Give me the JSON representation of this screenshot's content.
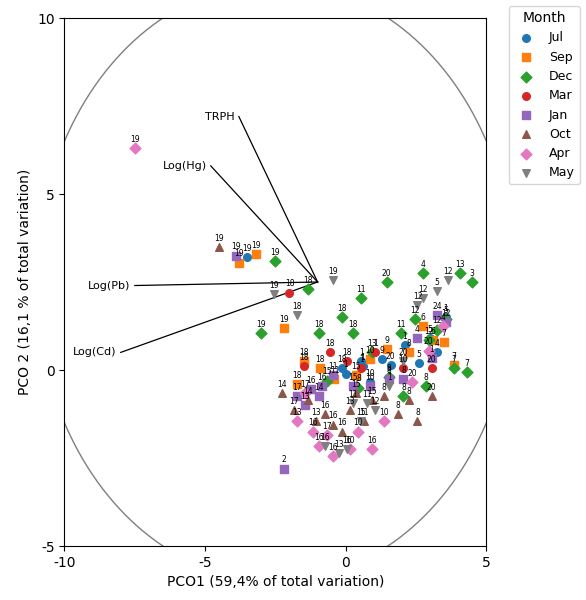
{
  "chart_data": {
    "type": "scatter",
    "x_label": "PCO1 (59,4% of total variation)",
    "y_label": "PCO 2 (16,1 % of total variation)",
    "xlim": [
      -10,
      5
    ],
    "ylim": [
      -5,
      10
    ],
    "xticks": [
      -10,
      -5,
      0,
      5
    ],
    "yticks": [
      -5,
      0,
      5,
      10
    ],
    "grid": false,
    "legend": "upper right",
    "legend_title": "Month",
    "circle": {
      "center": [
        -2.5,
        2.5
      ],
      "radius": 8.5,
      "color": "#7f7f7f"
    },
    "vectors": [
      {
        "label": "TRPH",
        "x1": -1.0,
        "y1": 2.5,
        "x2": -3.8,
        "y2": 7.2,
        "color": "#000000"
      },
      {
        "label": "Log(Hg)",
        "x1": -1.0,
        "y1": 2.5,
        "x2": -4.8,
        "y2": 5.8,
        "color": "#000000"
      },
      {
        "label": "Log(Pb)",
        "x1": -1.0,
        "y1": 2.5,
        "x2": -7.5,
        "y2": 2.4,
        "color": "#000000"
      },
      {
        "label": "Log(Cd)",
        "x1": -1.0,
        "y1": 2.5,
        "x2": -8.0,
        "y2": 0.5,
        "color": "#000000"
      }
    ],
    "series": [
      {
        "name": "Jul",
        "marker": "circle",
        "x": [
          -3.5,
          -0.15,
          0.0,
          0.6,
          1.3,
          1.6,
          0.85,
          0.55,
          2.1,
          2.6,
          3.0,
          3.25,
          3.55
        ],
        "values": [
          3.2,
          0.05,
          -0.1,
          0.1,
          0.3,
          0.15,
          -0.35,
          0.25,
          0.7,
          0.2,
          0.9,
          0.5,
          1.5
        ],
        "labels": [
          "19",
          "18",
          "1",
          "1",
          "9",
          "20",
          "10",
          "1",
          "1",
          "5",
          "5",
          "4",
          "1"
        ]
      },
      {
        "name": "Sep",
        "marker": "square",
        "x": [
          -3.8,
          -3.2,
          -2.2,
          -1.5,
          -1.75,
          -0.9,
          -0.4,
          0.35,
          0.85,
          1.45,
          2.25,
          2.75,
          3.1,
          3.5,
          3.85
        ],
        "values": [
          3.05,
          3.3,
          1.2,
          0.25,
          -0.4,
          0.05,
          -0.25,
          -0.15,
          0.3,
          0.6,
          0.5,
          1.25,
          0.85,
          0.8,
          0.15
        ],
        "labels": [
          "19",
          "19",
          "19",
          "18",
          "18",
          "18",
          "11",
          "15",
          "10",
          "9",
          "8",
          "6",
          "6",
          "7",
          "7"
        ]
      },
      {
        "name": "Dec",
        "marker": "diamond",
        "x": [
          -2.5,
          -1.35,
          -0.95,
          -0.15,
          0.25,
          0.55,
          1.45,
          2.75,
          3.85,
          4.5,
          4.3,
          3.25,
          2.45,
          0.95,
          1.95,
          2.95,
          3.55,
          -0.65,
          0.45,
          1.55,
          2.05,
          2.85,
          -3.0,
          4.05
        ],
        "values": [
          3.1,
          2.3,
          1.05,
          1.5,
          1.05,
          2.05,
          2.5,
          2.75,
          0.05,
          2.5,
          -0.05,
          1.15,
          1.45,
          0.5,
          1.05,
          0.85,
          1.45,
          -0.3,
          -0.5,
          -0.2,
          -0.75,
          -0.45,
          1.05,
          2.75
        ],
        "labels": [
          "19",
          "18",
          "18",
          "18",
          "18",
          "11",
          "20",
          "4",
          "7",
          "3",
          "7",
          "12",
          "12",
          "13",
          "11",
          "12",
          "5",
          "15",
          "8",
          "8",
          "8",
          "8",
          "19",
          "13"
        ]
      },
      {
        "name": "Mar",
        "marker": "circle",
        "x": [
          -2.0,
          -1.5,
          -0.55,
          0.05,
          0.55,
          1.05,
          2.05,
          3.05
        ],
        "values": [
          2.2,
          0.1,
          0.5,
          0.25,
          0.05,
          0.5,
          0.05,
          0.05
        ],
        "labels": [
          "18",
          "18",
          "18",
          "18",
          "1",
          "1",
          "10",
          "20"
        ]
      },
      {
        "name": "Jan",
        "marker": "square",
        "x": [
          -3.9,
          -2.2,
          -1.75,
          -1.45,
          -1.25,
          -0.95,
          -0.85,
          -0.45,
          0.25,
          0.85,
          1.55,
          2.05,
          2.55,
          3.55,
          3.05,
          3.25
        ],
        "values": [
          3.25,
          -2.8,
          -0.75,
          -1.0,
          -0.55,
          -0.75,
          -0.45,
          -0.15,
          -0.45,
          -0.45,
          -0.25,
          -0.25,
          0.9,
          1.35,
          0.35,
          1.55
        ],
        "labels": [
          "19",
          "2",
          "17",
          "13",
          "16",
          "14",
          "16",
          "11",
          "15",
          "10",
          "8",
          "8",
          "4",
          "12",
          "1",
          "24"
        ]
      },
      {
        "name": "Oct",
        "marker": "triangle_up",
        "x": [
          -4.5,
          -2.25,
          -1.85,
          -1.35,
          -1.05,
          -0.75,
          -0.45,
          -0.15,
          0.15,
          0.35,
          0.65,
          0.95,
          1.35,
          1.85,
          2.25,
          2.55,
          3.05
        ],
        "values": [
          3.5,
          -0.65,
          -1.15,
          -0.85,
          -1.45,
          -1.25,
          -1.55,
          -1.75,
          -1.15,
          -0.65,
          -1.45,
          -0.85,
          -0.75,
          -1.25,
          -0.85,
          -1.45,
          -0.75
        ],
        "labels": [
          "19",
          "14",
          "17",
          "14",
          "13",
          "16",
          "16",
          "16",
          "13",
          "15",
          "11",
          "15",
          "8",
          "8",
          "8",
          "8",
          "20"
        ]
      },
      {
        "name": "Apr",
        "marker": "diamond",
        "x": [
          -7.5,
          -1.75,
          -1.45,
          -1.15,
          -0.95,
          -0.65,
          -0.45,
          0.15,
          0.45,
          0.95,
          1.35,
          2.35,
          2.95,
          3.45
        ],
        "values": [
          6.3,
          -1.45,
          -0.65,
          -1.75,
          -2.15,
          -1.85,
          -2.45,
          -2.25,
          -1.75,
          -2.25,
          -1.45,
          -0.35,
          0.55,
          1.25
        ],
        "labels": [
          "19",
          "13",
          "17",
          "16",
          "16",
          "17",
          "16",
          "10",
          "10",
          "16",
          "10",
          "20",
          "20",
          "4"
        ]
      },
      {
        "name": "May",
        "marker": "triangle_down",
        "x": [
          -2.55,
          -0.45,
          -0.75,
          -0.25,
          0.05,
          0.25,
          0.55,
          0.75,
          1.05,
          1.55,
          2.05,
          2.55,
          3.25,
          3.65,
          -1.75,
          2.75
        ],
        "values": [
          2.15,
          2.55,
          -2.15,
          -2.35,
          -2.25,
          -0.95,
          -1.45,
          -0.95,
          -1.15,
          -0.45,
          0.25,
          1.85,
          2.25,
          2.55,
          1.55,
          2.05
        ],
        "labels": [
          "19",
          "19",
          "16",
          "13",
          "16",
          "11",
          "15",
          "11",
          "12",
          "1",
          "20",
          "12",
          "5",
          "12",
          "18",
          "12"
        ]
      }
    ]
  }
}
